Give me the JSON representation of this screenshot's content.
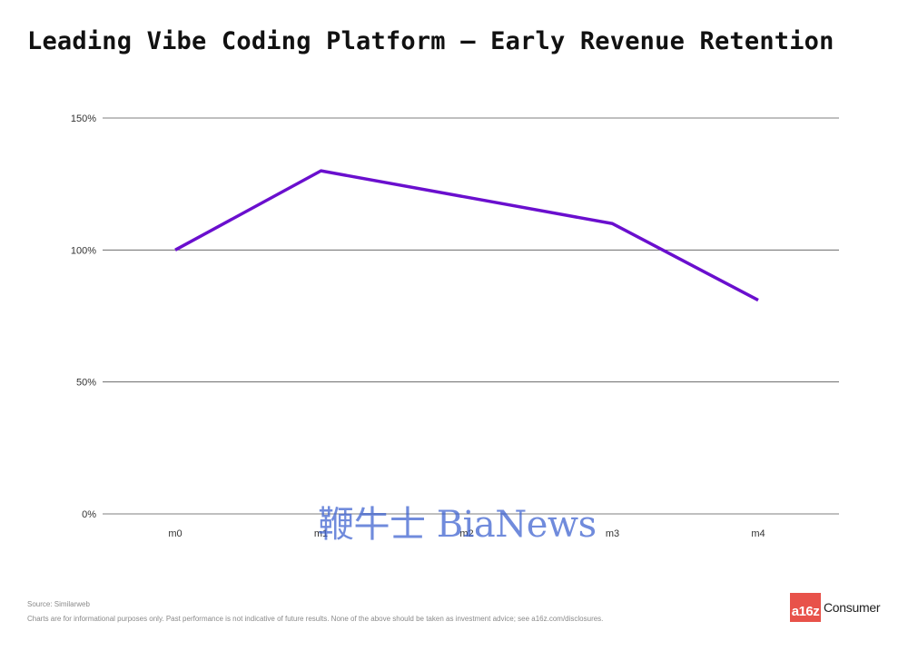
{
  "title": "Leading Vibe Coding Platform – Early Revenue Retention",
  "chart_data": {
    "type": "line",
    "title": "Leading Vibe Coding Platform – Early Revenue Retention",
    "xlabel": "",
    "ylabel": "",
    "categories": [
      "m0",
      "m1",
      "m2",
      "m3",
      "m4"
    ],
    "series": [
      {
        "name": "",
        "values": [
          100,
          130,
          120,
          110,
          81
        ],
        "color": "#6a0fce"
      }
    ],
    "yticks": [
      0,
      50,
      100,
      150
    ],
    "ytick_labels": [
      "0%",
      "50%",
      "100%",
      "150%"
    ],
    "ylim": [
      0,
      150
    ],
    "grid": "horizontal",
    "legend": "none"
  },
  "watermark": "鞭牛士 BiaNews",
  "footer": {
    "source": "Source: Similarweb",
    "disclaimer": "Charts are for informational purposes only. Past performance is not indicative of future results. None of the above should be taken as investment advice; see a16z.com/disclosures."
  },
  "logo": {
    "mark": "a16z",
    "text": "Consumer",
    "mark_color": "#e8524a"
  }
}
